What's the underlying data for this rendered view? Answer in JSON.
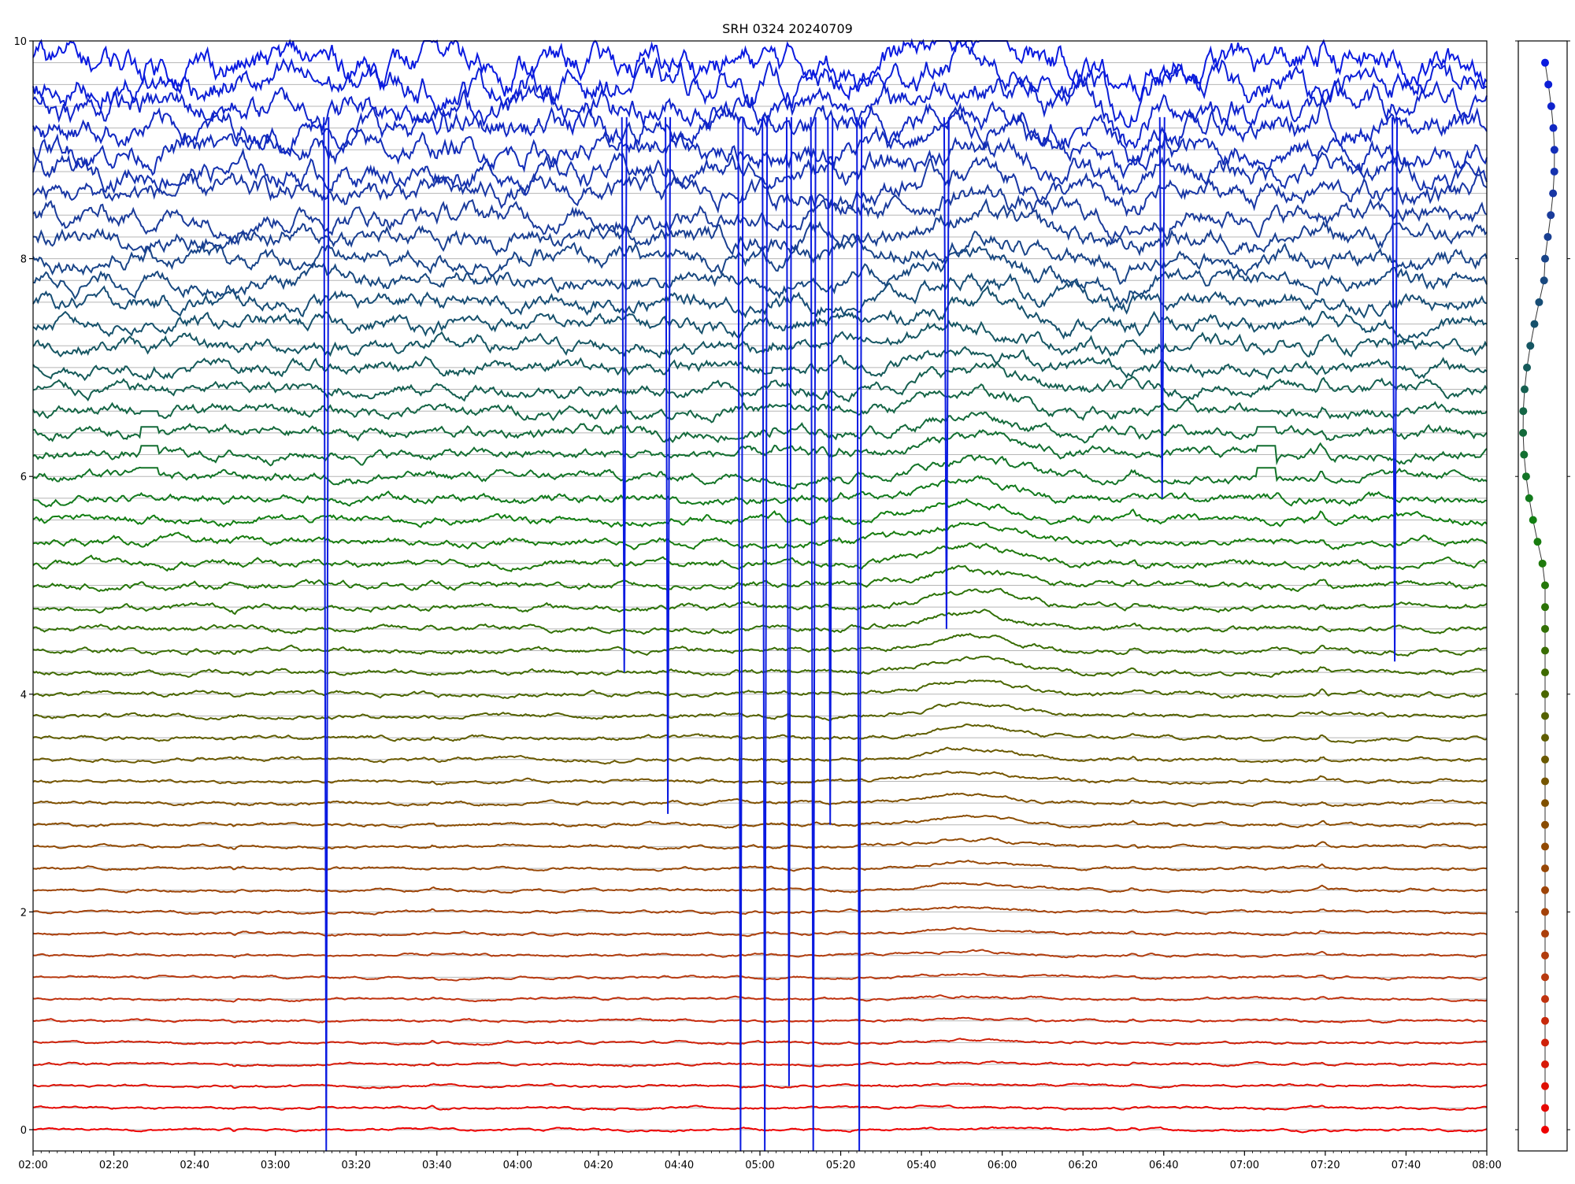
{
  "chart_data": {
    "type": "line",
    "title": "SRH 0324 20240709",
    "xlabel": "",
    "ylabel": "",
    "x_ticks": [
      "02:00",
      "02:20",
      "02:40",
      "03:00",
      "03:20",
      "03:40",
      "04:00",
      "04:20",
      "04:40",
      "05:00",
      "05:20",
      "05:40",
      "06:00",
      "06:20",
      "06:40",
      "07:00",
      "07:20",
      "07:40",
      "08:00"
    ],
    "xlim_hours": [
      2.0,
      8.0
    ],
    "y_ticks": [
      "0",
      "2",
      "4",
      "6",
      "8",
      "10"
    ],
    "ylim": [
      -0.2,
      10
    ],
    "grid": "horizontal",
    "legend": "none",
    "n_series": 50,
    "baseline_spacing": 0.2,
    "baseline_first": 0.0,
    "color_gradient": [
      "#ee0000",
      "#b83a10",
      "#8a4c00",
      "#3f6a00",
      "#127f12",
      "#155a5a",
      "#1a3b9a",
      "#0a1ae0"
    ],
    "events_hours": [
      2.48,
      2.98,
      3.62,
      4.88,
      5.15,
      5.32,
      5.82,
      6.54,
      7.33
    ],
    "right_panel": {
      "type": "scatter",
      "y_ticks": [
        "0",
        "2",
        "4",
        "6",
        "8",
        "10"
      ],
      "marker_colors": [
        "#ee0000",
        "#127f12",
        "#0a1ae0"
      ]
    }
  }
}
